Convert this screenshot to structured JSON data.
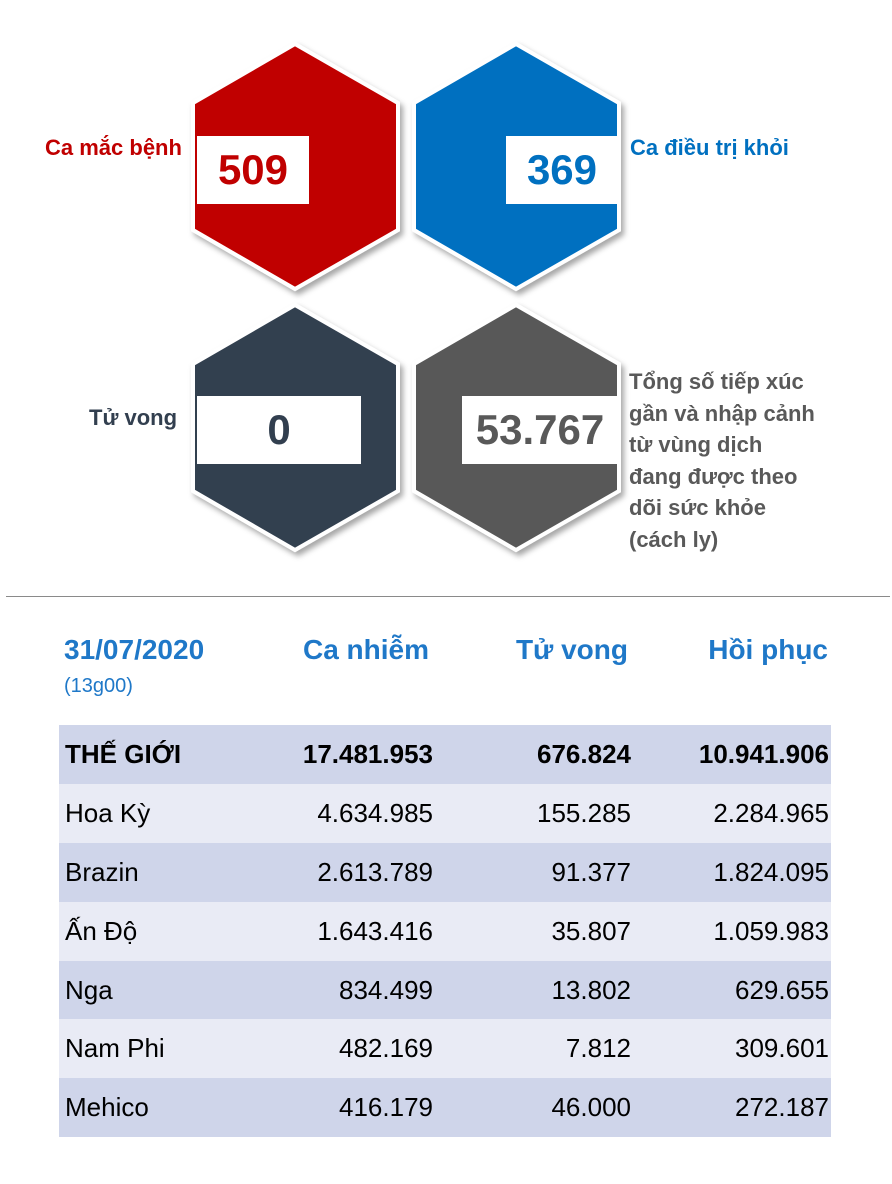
{
  "stats": {
    "cases": {
      "label": "Ca mắc bệnh",
      "value": "509",
      "color": "#c00000"
    },
    "recovered": {
      "label": "Ca điều trị khỏi",
      "value": "369",
      "color": "#0070c0"
    },
    "deaths": {
      "label": "Tử vong",
      "value": "0",
      "color": "#323f4f"
    },
    "monitored": {
      "label": "Tổng số tiếp xúc gần và nhập cảnh từ vùng dịch đang được theo dõi sức khỏe (cách ly)",
      "value": "53.767",
      "color": "#595959"
    }
  },
  "table": {
    "date": "31/07/2020",
    "time": "(13g00)",
    "headers": [
      "Ca nhiễm",
      "Tử vong",
      "Hồi phục"
    ],
    "rows": [
      {
        "name": "THẾ GIỚI",
        "cases": "17.481.953",
        "deaths": "676.824",
        "recovered": "10.941.906"
      },
      {
        "name": "Hoa Kỳ",
        "cases": "4.634.985",
        "deaths": "155.285",
        "recovered": "2.284.965"
      },
      {
        "name": "Brazin",
        "cases": "2.613.789",
        "deaths": "91.377",
        "recovered": "1.824.095"
      },
      {
        "name": "Ấn Độ",
        "cases": "1.643.416",
        "deaths": "35.807",
        "recovered": "1.059.983"
      },
      {
        "name": "Nga",
        "cases": "834.499",
        "deaths": "13.802",
        "recovered": "629.655"
      },
      {
        "name": "Nam Phi",
        "cases": "482.169",
        "deaths": "7.812",
        "recovered": "309.601"
      },
      {
        "name": "Mehico",
        "cases": "416.179",
        "deaths": "46.000",
        "recovered": "272.187"
      }
    ]
  }
}
